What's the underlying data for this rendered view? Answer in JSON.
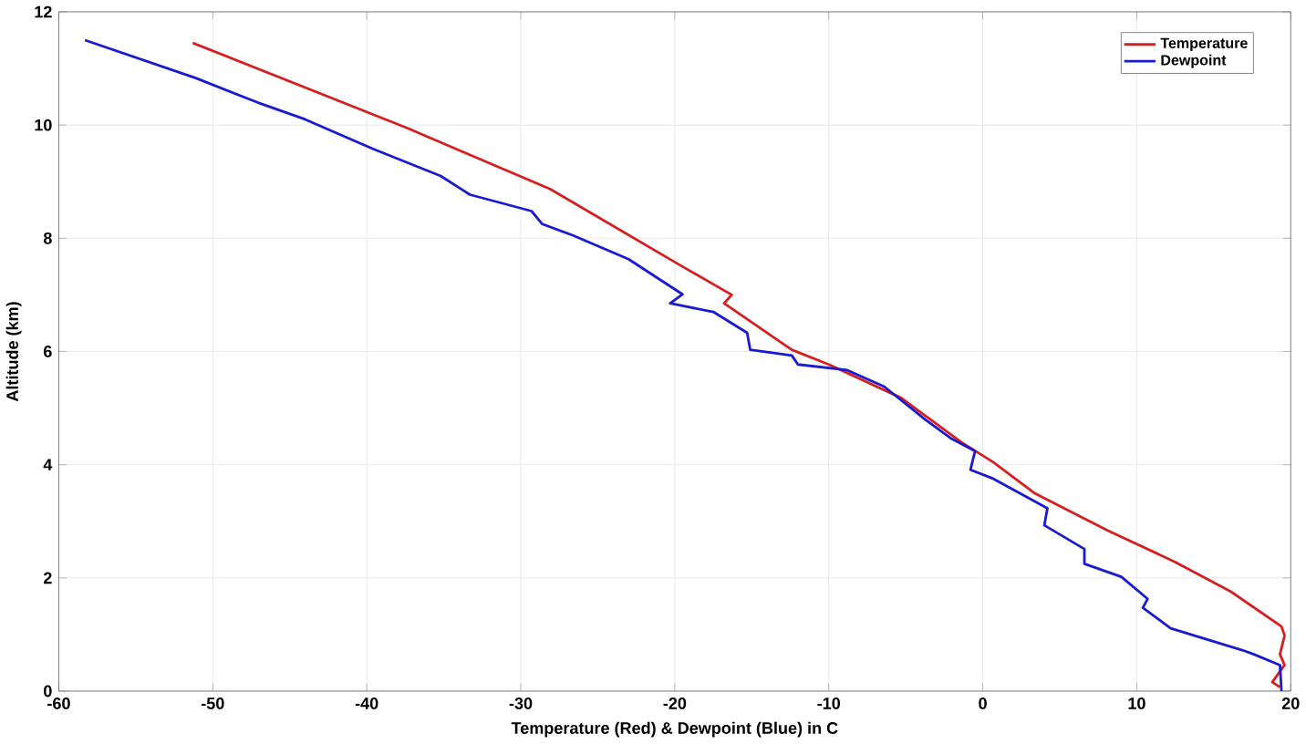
{
  "chart_data": {
    "type": "line",
    "xlabel": "Temperature (Red) & Dewpoint (Blue) in C",
    "ylabel": "Altitude (km)",
    "xlim": [
      -60,
      20
    ],
    "ylim": [
      0,
      12
    ],
    "xticks": [
      -60,
      -50,
      -40,
      -30,
      -20,
      -10,
      0,
      10,
      20
    ],
    "yticks": [
      0,
      2,
      4,
      6,
      8,
      10,
      12
    ],
    "grid": true,
    "legend": "top right",
    "marker": "none",
    "line_style": "solid",
    "series": [
      {
        "name": "Temperature",
        "color": "#d42020",
        "x": [
          -51.3,
          -37.4,
          -33.7,
          -28.1,
          -19.5,
          -16.3,
          -16.8,
          -12.4,
          -10.0,
          -5.3,
          -1.4,
          0.7,
          3.4,
          8.1,
          12.5,
          16.1,
          19.4,
          19.6,
          19.3,
          19.6,
          18.8,
          19.3
        ],
        "values": [
          11.45,
          9.95,
          9.52,
          8.87,
          7.5,
          7.0,
          6.85,
          6.03,
          5.77,
          5.18,
          4.4,
          4.04,
          3.49,
          2.84,
          2.28,
          1.76,
          1.14,
          0.98,
          0.65,
          0.46,
          0.16,
          0.07
        ]
      },
      {
        "name": "Dewpoint",
        "color": "#1a1ad0",
        "x": [
          -58.3,
          -51.1,
          -47.1,
          -44.0,
          -39.6,
          -35.2,
          -33.3,
          -29.3,
          -28.6,
          -26.6,
          -23.0,
          -19.5,
          -20.3,
          -17.5,
          -15.3,
          -15.1,
          -12.4,
          -12.0,
          -8.8,
          -6.4,
          -3.7,
          -2.1,
          -0.5,
          -0.8,
          0.7,
          4.2,
          4.0,
          6.6,
          6.6,
          9.0,
          10.7,
          10.4,
          12.2,
          16.9,
          17.6,
          19.3,
          19.4
        ],
        "values": [
          11.5,
          10.83,
          10.4,
          10.1,
          9.58,
          9.1,
          8.77,
          8.48,
          8.25,
          8.05,
          7.63,
          7.01,
          6.85,
          6.7,
          6.33,
          6.03,
          5.93,
          5.77,
          5.67,
          5.38,
          4.79,
          4.47,
          4.24,
          3.91,
          3.75,
          3.23,
          2.93,
          2.51,
          2.25,
          2.02,
          1.63,
          1.47,
          1.11,
          0.72,
          0.65,
          0.46,
          0.0
        ]
      }
    ]
  }
}
